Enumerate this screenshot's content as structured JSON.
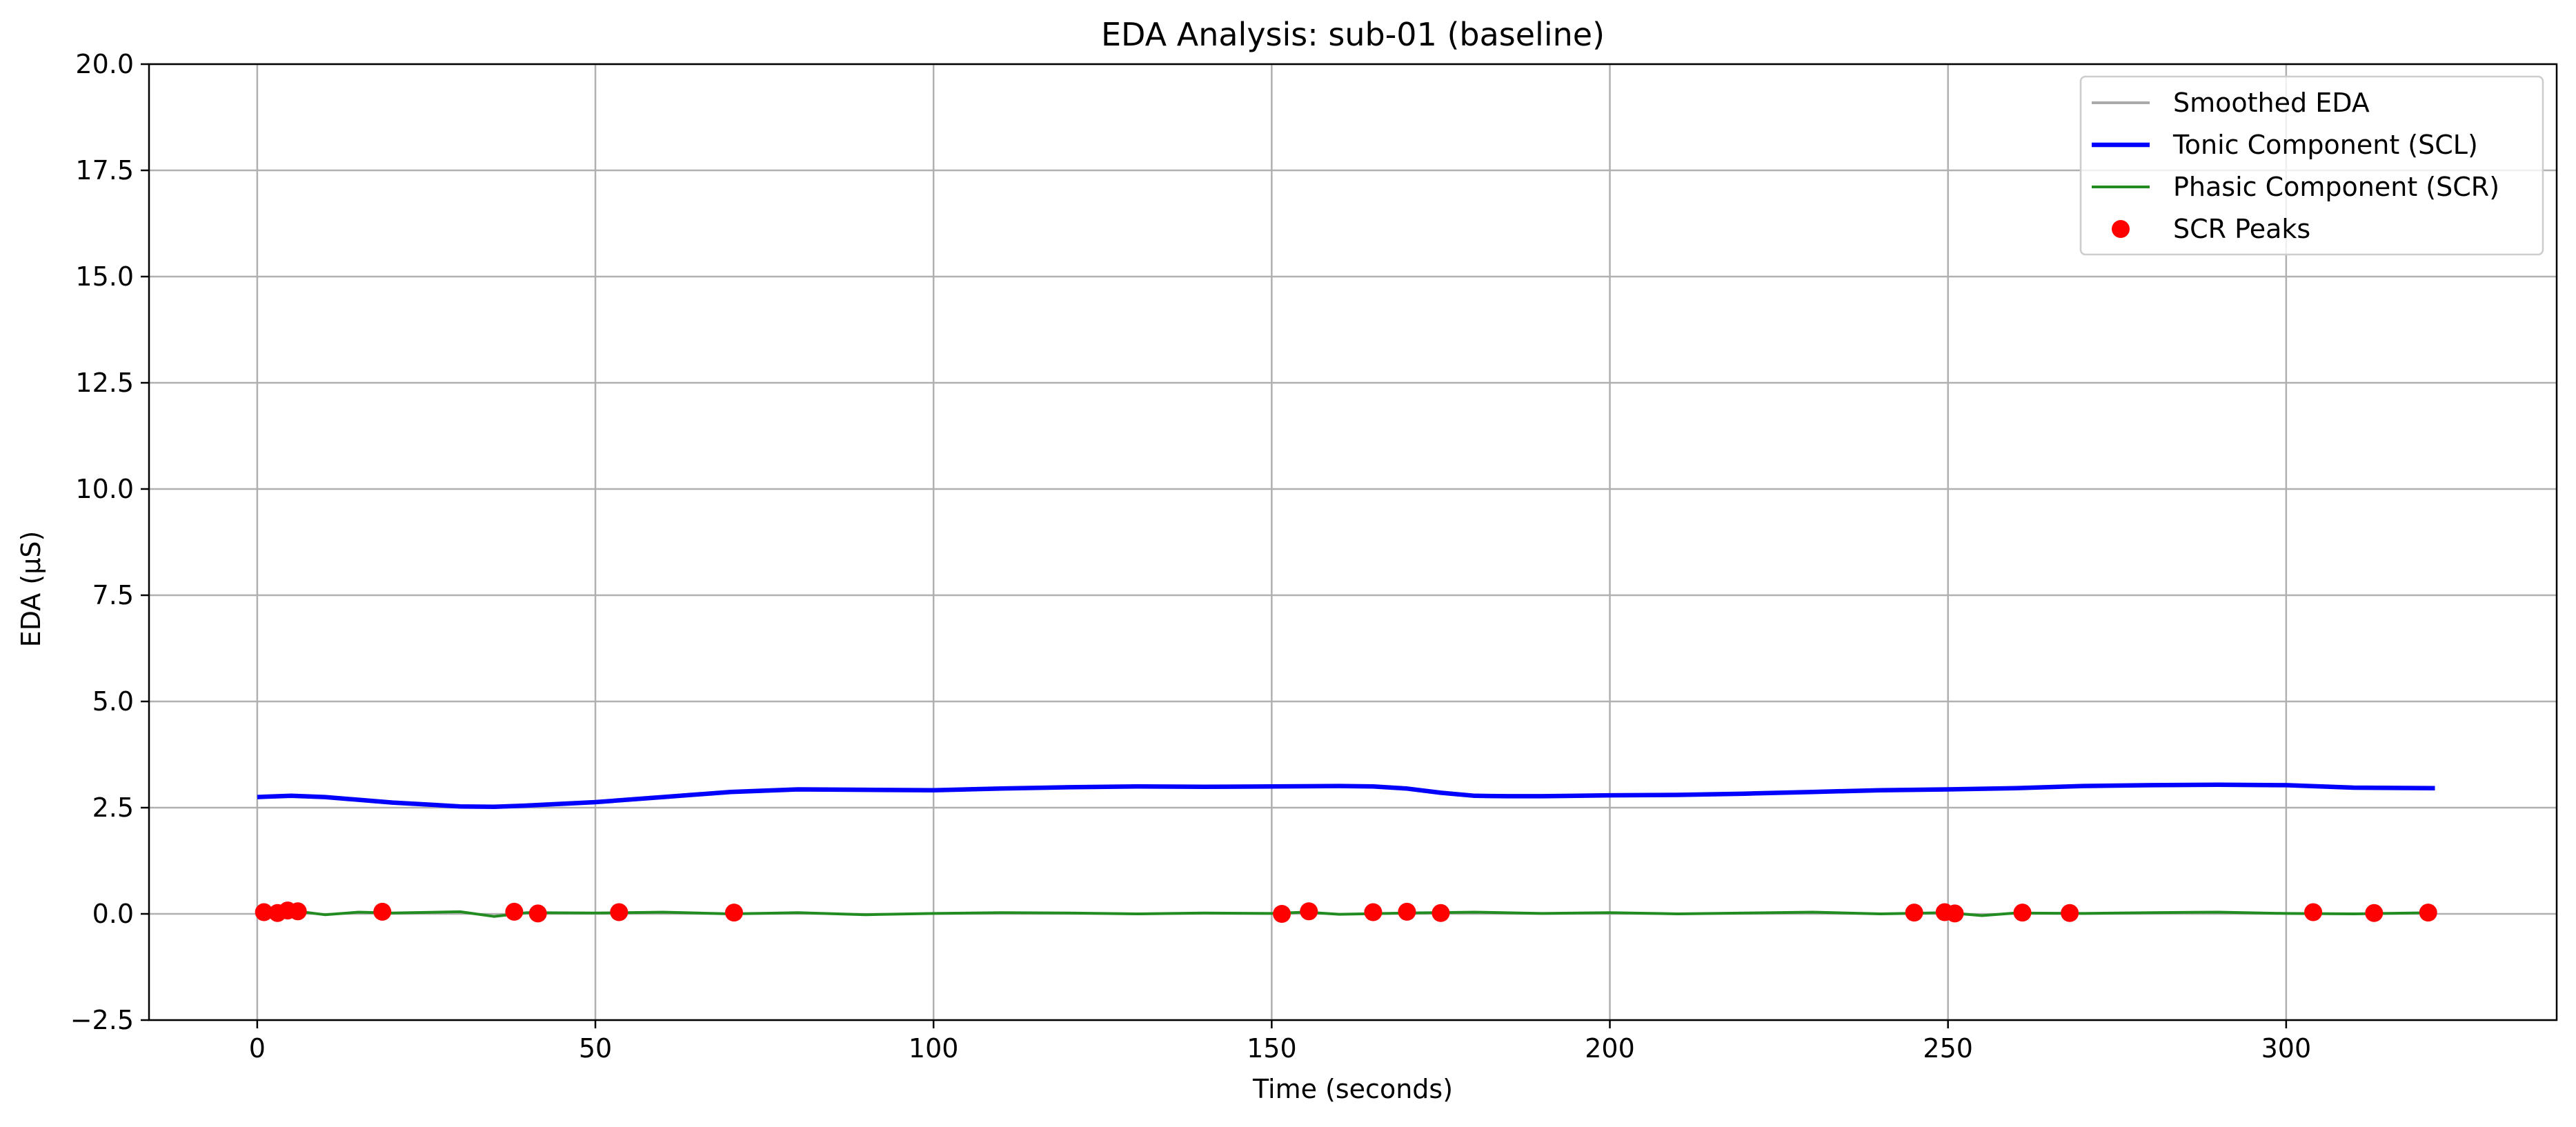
{
  "chart_data": {
    "type": "line",
    "title": "EDA Analysis: sub-01 (baseline)",
    "xlabel": "Time (seconds)",
    "ylabel": "EDA (µS)",
    "xlim": [
      -16,
      340
    ],
    "ylim": [
      -2.5,
      20.0
    ],
    "xticks": [
      0,
      50,
      100,
      150,
      200,
      250,
      300
    ],
    "yticks": [
      -2.5,
      0.0,
      2.5,
      5.0,
      7.5,
      10.0,
      12.5,
      15.0,
      17.5,
      20.0
    ],
    "xtick_labels": [
      "0",
      "50",
      "100",
      "150",
      "200",
      "250",
      "300"
    ],
    "ytick_labels": [
      "−2.5",
      "0.0",
      "2.5",
      "5.0",
      "7.5",
      "10.0",
      "12.5",
      "15.0",
      "17.5",
      "20.0"
    ],
    "grid": true,
    "legend_position": "top-right",
    "series": [
      {
        "name": "Smoothed EDA",
        "kind": "line",
        "color": "#aaaaaa",
        "x": [],
        "y": []
      },
      {
        "name": "Tonic Component (SCL)",
        "kind": "line",
        "color": "#0000ff",
        "x": [
          0,
          5,
          10,
          20,
          30,
          35,
          40,
          50,
          60,
          70,
          80,
          90,
          100,
          110,
          120,
          130,
          140,
          150,
          160,
          165,
          170,
          175,
          180,
          185,
          190,
          200,
          210,
          220,
          230,
          240,
          250,
          260,
          270,
          280,
          290,
          300,
          310,
          322
        ],
        "y": [
          2.75,
          2.78,
          2.75,
          2.62,
          2.53,
          2.52,
          2.55,
          2.63,
          2.75,
          2.87,
          2.93,
          2.92,
          2.91,
          2.95,
          2.98,
          3.0,
          2.99,
          3.0,
          3.01,
          3.0,
          2.95,
          2.85,
          2.78,
          2.77,
          2.77,
          2.79,
          2.8,
          2.83,
          2.87,
          2.91,
          2.93,
          2.96,
          3.01,
          3.03,
          3.04,
          3.03,
          2.97,
          2.96
        ]
      },
      {
        "name": "Phasic Component (SCR)",
        "kind": "line",
        "color": "#228b22",
        "x": [
          0,
          5,
          10,
          15,
          20,
          30,
          35,
          40,
          50,
          60,
          70,
          80,
          90,
          100,
          110,
          120,
          130,
          140,
          150,
          155,
          160,
          170,
          180,
          190,
          200,
          210,
          220,
          230,
          240,
          250,
          255,
          260,
          270,
          280,
          290,
          300,
          310,
          322
        ],
        "y": [
          0.05,
          0.08,
          -0.02,
          0.04,
          0.02,
          0.05,
          -0.06,
          0.03,
          0.02,
          0.04,
          0.0,
          0.03,
          -0.02,
          0.01,
          0.03,
          0.02,
          0.0,
          0.02,
          0.01,
          0.04,
          -0.01,
          0.02,
          0.04,
          0.01,
          0.03,
          0.0,
          0.02,
          0.04,
          0.0,
          0.03,
          -0.04,
          0.02,
          0.01,
          0.03,
          0.04,
          0.01,
          0.0,
          0.03
        ]
      },
      {
        "name": "SCR Peaks",
        "kind": "scatter",
        "color": "#ff0000",
        "x": [
          1,
          3,
          4.5,
          6,
          18.5,
          38,
          41.5,
          53.5,
          70.5,
          151.5,
          155.5,
          165,
          170,
          175,
          245,
          249.5,
          251,
          261,
          268,
          304,
          313,
          321
        ],
        "y": [
          0.04,
          0.02,
          0.08,
          0.06,
          0.05,
          0.05,
          0.01,
          0.04,
          0.03,
          0.0,
          0.06,
          0.04,
          0.05,
          0.02,
          0.03,
          0.04,
          0.01,
          0.03,
          0.02,
          0.04,
          0.02,
          0.03
        ]
      }
    ]
  }
}
